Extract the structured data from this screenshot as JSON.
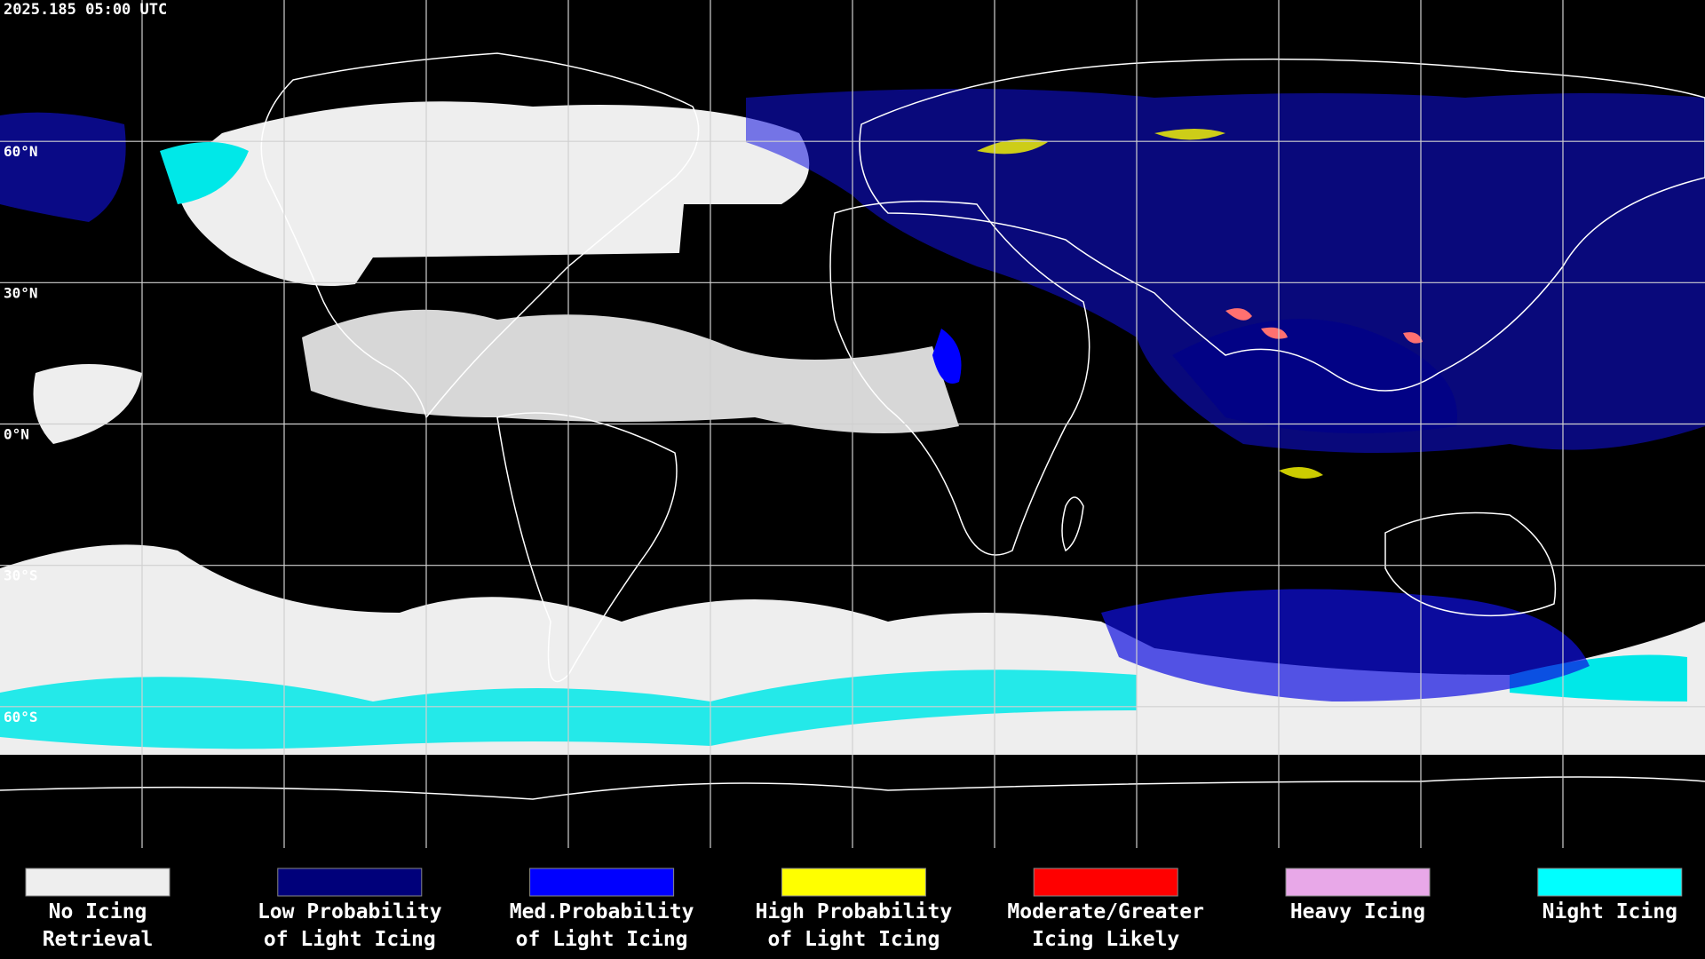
{
  "header": {
    "timestamp": "2025.185 05:00 UTC"
  },
  "map": {
    "latitude_labels": [
      "60°N",
      "30°N",
      "0°N",
      "30°S",
      "60°S"
    ]
  },
  "legend": {
    "items": [
      {
        "lines": [
          "No Icing",
          "Retrieval"
        ],
        "color": "#eeeeee"
      },
      {
        "lines": [
          "Low Probability",
          "of Light Icing"
        ],
        "color": "#00007a"
      },
      {
        "lines": [
          "Med.Probability",
          "of Light Icing"
        ],
        "color": "#0000ff"
      },
      {
        "lines": [
          "High Probability",
          "of Light Icing"
        ],
        "color": "#ffff00"
      },
      {
        "lines": [
          "Moderate/Greater",
          "Icing Likely"
        ],
        "color": "#ff0000"
      },
      {
        "lines": [
          "Heavy Icing"
        ],
        "color": "#e8a8e8"
      },
      {
        "lines": [
          "Night Icing"
        ],
        "color": "#00ffff"
      }
    ]
  }
}
